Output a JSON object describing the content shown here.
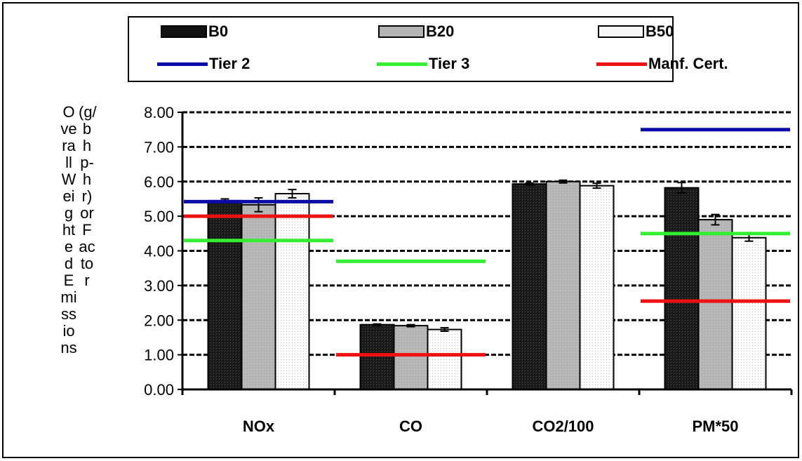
{
  "chart_data": {
    "type": "bar",
    "title": "",
    "ylabel": "Overall Weighted Emissions (g/bhp-hr) or Factor",
    "ylabel_line1": "Overall Weighted Emissions",
    "ylabel_line2": "(g/bhp-hr) or Factor",
    "xlabel": "",
    "ylim": [
      0,
      8
    ],
    "yticks": [
      "0.00",
      "1.00",
      "2.00",
      "3.00",
      "4.00",
      "5.00",
      "6.00",
      "7.00",
      "8.00"
    ],
    "grid": true,
    "legend_position": "top",
    "categories": [
      "NOx",
      "CO",
      "CO2/100",
      "PM*50"
    ],
    "series": [
      {
        "name": "B0",
        "values": [
          5.45,
          1.87,
          5.93,
          5.82
        ],
        "errors": [
          0.05,
          0.02,
          0.03,
          0.15
        ],
        "fill": "#111111"
      },
      {
        "name": "B20",
        "values": [
          5.33,
          1.84,
          6.0,
          4.9
        ],
        "errors": [
          0.2,
          0.03,
          0.04,
          0.15
        ],
        "fill": "#b4b4b4"
      },
      {
        "name": "B50",
        "values": [
          5.65,
          1.73,
          5.88,
          4.38
        ],
        "errors": [
          0.12,
          0.05,
          0.07,
          0.1
        ],
        "fill": "#f2f2f2"
      }
    ],
    "reference_lines": [
      {
        "name": "Tier 2",
        "color": "#0b0ba8",
        "segments": [
          {
            "category": "NOx",
            "value": 5.42
          },
          {
            "category": "PM*50",
            "value": 7.5
          }
        ]
      },
      {
        "name": "Tier 3",
        "color": "#33ee33",
        "segments": [
          {
            "category": "NOx",
            "value": 4.3
          },
          {
            "category": "CO",
            "value": 3.7
          },
          {
            "category": "PM*50",
            "value": 4.5
          }
        ]
      },
      {
        "name": "Manf. Cert.",
        "color": "#ee1111",
        "segments": [
          {
            "category": "NOx",
            "value": 5.0
          },
          {
            "category": "CO",
            "value": 1.0
          },
          {
            "category": "PM*50",
            "value": 2.55
          }
        ]
      }
    ]
  },
  "legend": {
    "b0": "B0",
    "b20": "B20",
    "b50": "B50",
    "tier2": "Tier 2",
    "tier3": "Tier 3",
    "manf": "Manf. Cert."
  }
}
